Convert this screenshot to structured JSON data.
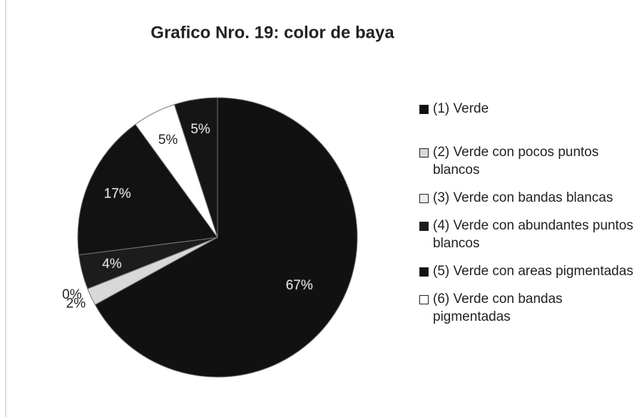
{
  "chart_data": {
    "type": "pie",
    "title": "Grafico Nro. 19: color de baya",
    "categories": [
      "(1) Verde",
      "(2) Verde con pocos puntos blancos",
      "(3) Verde con bandas blancas",
      "(4) Verde con abundantes puntos blancos",
      "(5) Verde con areas pigmentadas",
      "(6) Verde con bandas pigmentadas",
      null
    ],
    "values": [
      67,
      2,
      0,
      4,
      17,
      5,
      5
    ],
    "value_labels": [
      "67%",
      "2%",
      "0%",
      "4%",
      "17%",
      "5%",
      "5%"
    ],
    "colors": [
      "#111111",
      "#d8d8d8",
      "#eeeeee",
      "#1c1c1c",
      "#121212",
      "#ffffff",
      "#151515"
    ],
    "legend": "right"
  }
}
